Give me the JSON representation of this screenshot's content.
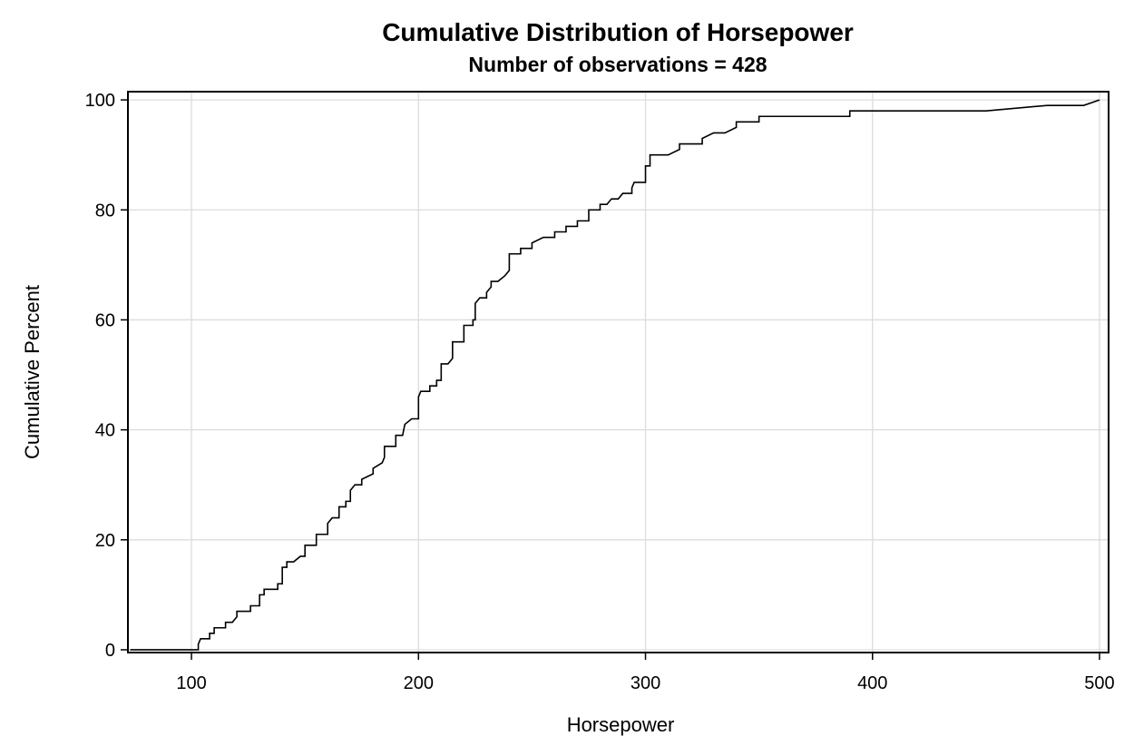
{
  "chart_data": {
    "type": "line",
    "title": "Cumulative Distribution of Horsepower",
    "subtitle": "Number of observations = 428",
    "xlabel": "Horsepower",
    "ylabel": "Cumulative Percent",
    "xlim": [
      72,
      504
    ],
    "ylim": [
      -0.5,
      101.5
    ],
    "x_ticks": [
      100,
      200,
      300,
      400,
      500
    ],
    "y_ticks": [
      0,
      20,
      40,
      60,
      80,
      100
    ],
    "grid": true,
    "step": true,
    "series": [
      {
        "points": [
          [
            73,
            0
          ],
          [
            103,
            0
          ],
          [
            103,
            1
          ],
          [
            104,
            2
          ],
          [
            108,
            2
          ],
          [
            108,
            3
          ],
          [
            110,
            3
          ],
          [
            110,
            4
          ],
          [
            115,
            4
          ],
          [
            115,
            5
          ],
          [
            118,
            5
          ],
          [
            120,
            6
          ],
          [
            120,
            7
          ],
          [
            126,
            7
          ],
          [
            126,
            8
          ],
          [
            130,
            8
          ],
          [
            130,
            10
          ],
          [
            132,
            10
          ],
          [
            132,
            11
          ],
          [
            138,
            11
          ],
          [
            138,
            12
          ],
          [
            140,
            12
          ],
          [
            140,
            15
          ],
          [
            142,
            15
          ],
          [
            142,
            16
          ],
          [
            145,
            16
          ],
          [
            148,
            17
          ],
          [
            150,
            17
          ],
          [
            150,
            19
          ],
          [
            155,
            19
          ],
          [
            155,
            21
          ],
          [
            160,
            21
          ],
          [
            160,
            23
          ],
          [
            162,
            24
          ],
          [
            165,
            24
          ],
          [
            165,
            26
          ],
          [
            168,
            26
          ],
          [
            168,
            27
          ],
          [
            170,
            27
          ],
          [
            170,
            29
          ],
          [
            172,
            30
          ],
          [
            175,
            30
          ],
          [
            175,
            31
          ],
          [
            180,
            32
          ],
          [
            180,
            33
          ],
          [
            184,
            34
          ],
          [
            185,
            35
          ],
          [
            185,
            37
          ],
          [
            190,
            37
          ],
          [
            190,
            39
          ],
          [
            193,
            39
          ],
          [
            194,
            41
          ],
          [
            197,
            42
          ],
          [
            200,
            42
          ],
          [
            200,
            46
          ],
          [
            201,
            47
          ],
          [
            205,
            47
          ],
          [
            205,
            48
          ],
          [
            208,
            48
          ],
          [
            208,
            49
          ],
          [
            210,
            49
          ],
          [
            210,
            52
          ],
          [
            213,
            52
          ],
          [
            215,
            53
          ],
          [
            215,
            56
          ],
          [
            220,
            56
          ],
          [
            220,
            59
          ],
          [
            224,
            59
          ],
          [
            224,
            60
          ],
          [
            225,
            60
          ],
          [
            225,
            63
          ],
          [
            227,
            64
          ],
          [
            230,
            64
          ],
          [
            230,
            65
          ],
          [
            232,
            66
          ],
          [
            232,
            67
          ],
          [
            235,
            67
          ],
          [
            238,
            68
          ],
          [
            240,
            69
          ],
          [
            240,
            72
          ],
          [
            245,
            72
          ],
          [
            245,
            73
          ],
          [
            250,
            73
          ],
          [
            250,
            74
          ],
          [
            255,
            75
          ],
          [
            260,
            75
          ],
          [
            260,
            76
          ],
          [
            265,
            76
          ],
          [
            265,
            77
          ],
          [
            270,
            77
          ],
          [
            270,
            78
          ],
          [
            275,
            78
          ],
          [
            275,
            80
          ],
          [
            280,
            80
          ],
          [
            280,
            81
          ],
          [
            283,
            81
          ],
          [
            285,
            82
          ],
          [
            288,
            82
          ],
          [
            290,
            83
          ],
          [
            294,
            83
          ],
          [
            294,
            84
          ],
          [
            295,
            85
          ],
          [
            300,
            85
          ],
          [
            300,
            88
          ],
          [
            302,
            88
          ],
          [
            302,
            90
          ],
          [
            310,
            90
          ],
          [
            315,
            91
          ],
          [
            315,
            92
          ],
          [
            325,
            92
          ],
          [
            325,
            93
          ],
          [
            330,
            94
          ],
          [
            335,
            94
          ],
          [
            340,
            95
          ],
          [
            340,
            96
          ],
          [
            350,
            96
          ],
          [
            350,
            97
          ],
          [
            390,
            97
          ],
          [
            390,
            98
          ],
          [
            450,
            98
          ],
          [
            477,
            99
          ],
          [
            493,
            99
          ],
          [
            500,
            100
          ]
        ]
      }
    ]
  }
}
